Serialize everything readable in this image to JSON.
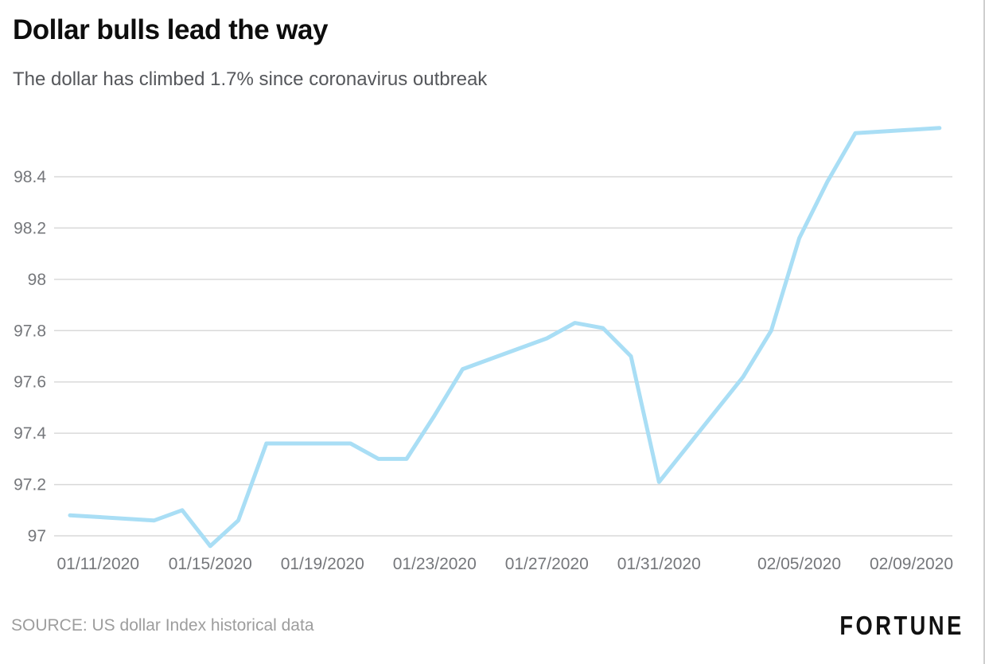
{
  "header": {
    "title": "Dollar bulls lead the way",
    "subtitle": "The dollar has climbed 1.7% since coronavirus outbreak"
  },
  "footer": {
    "source": "SOURCE: US dollar Index historical data",
    "brand": "FORTUNE"
  },
  "colors": {
    "line": "#a9def5",
    "grid": "#d9d9d9",
    "tick_text": "#75777b",
    "title_text": "#0d0d0d",
    "subtitle_text": "#55575b",
    "source_text": "#9d9d9d"
  },
  "chart_data": {
    "type": "line",
    "title": "Dollar bulls lead the way",
    "subtitle": "The dollar has climbed 1.7% since coronavirus outbreak",
    "xlabel": "",
    "ylabel": "",
    "grid": "horizontal-only",
    "legend": "none",
    "x_ticks": [
      "01/11/2020",
      "01/15/2020",
      "01/19/2020",
      "01/23/2020",
      "01/27/2020",
      "01/31/2020",
      "02/05/2020",
      "02/09/2020"
    ],
    "y_ticks": [
      97,
      97.2,
      97.4,
      97.6,
      97.8,
      98,
      98.2,
      98.4
    ],
    "ylim": [
      96.9,
      98.65
    ],
    "x_range": [
      "01/10/2020",
      "02/10/2020"
    ],
    "series": [
      {
        "name": "US Dollar Index",
        "points": [
          {
            "date": "01/10/2020",
            "value": 97.08
          },
          {
            "date": "01/13/2020",
            "value": 97.06
          },
          {
            "date": "01/14/2020",
            "value": 97.1
          },
          {
            "date": "01/15/2020",
            "value": 96.96
          },
          {
            "date": "01/16/2020",
            "value": 97.06
          },
          {
            "date": "01/17/2020",
            "value": 97.36
          },
          {
            "date": "01/20/2020",
            "value": 97.36
          },
          {
            "date": "01/21/2020",
            "value": 97.3
          },
          {
            "date": "01/22/2020",
            "value": 97.3
          },
          {
            "date": "01/23/2020",
            "value": 97.47
          },
          {
            "date": "01/24/2020",
            "value": 97.65
          },
          {
            "date": "01/27/2020",
            "value": 97.77
          },
          {
            "date": "01/28/2020",
            "value": 97.83
          },
          {
            "date": "01/29/2020",
            "value": 97.81
          },
          {
            "date": "01/30/2020",
            "value": 97.7
          },
          {
            "date": "01/31/2020",
            "value": 97.21
          },
          {
            "date": "02/03/2020",
            "value": 97.62
          },
          {
            "date": "02/04/2020",
            "value": 97.8
          },
          {
            "date": "02/05/2020",
            "value": 98.16
          },
          {
            "date": "02/06/2020",
            "value": 98.38
          },
          {
            "date": "02/07/2020",
            "value": 98.57
          },
          {
            "date": "02/10/2020",
            "value": 98.59
          }
        ]
      }
    ]
  }
}
